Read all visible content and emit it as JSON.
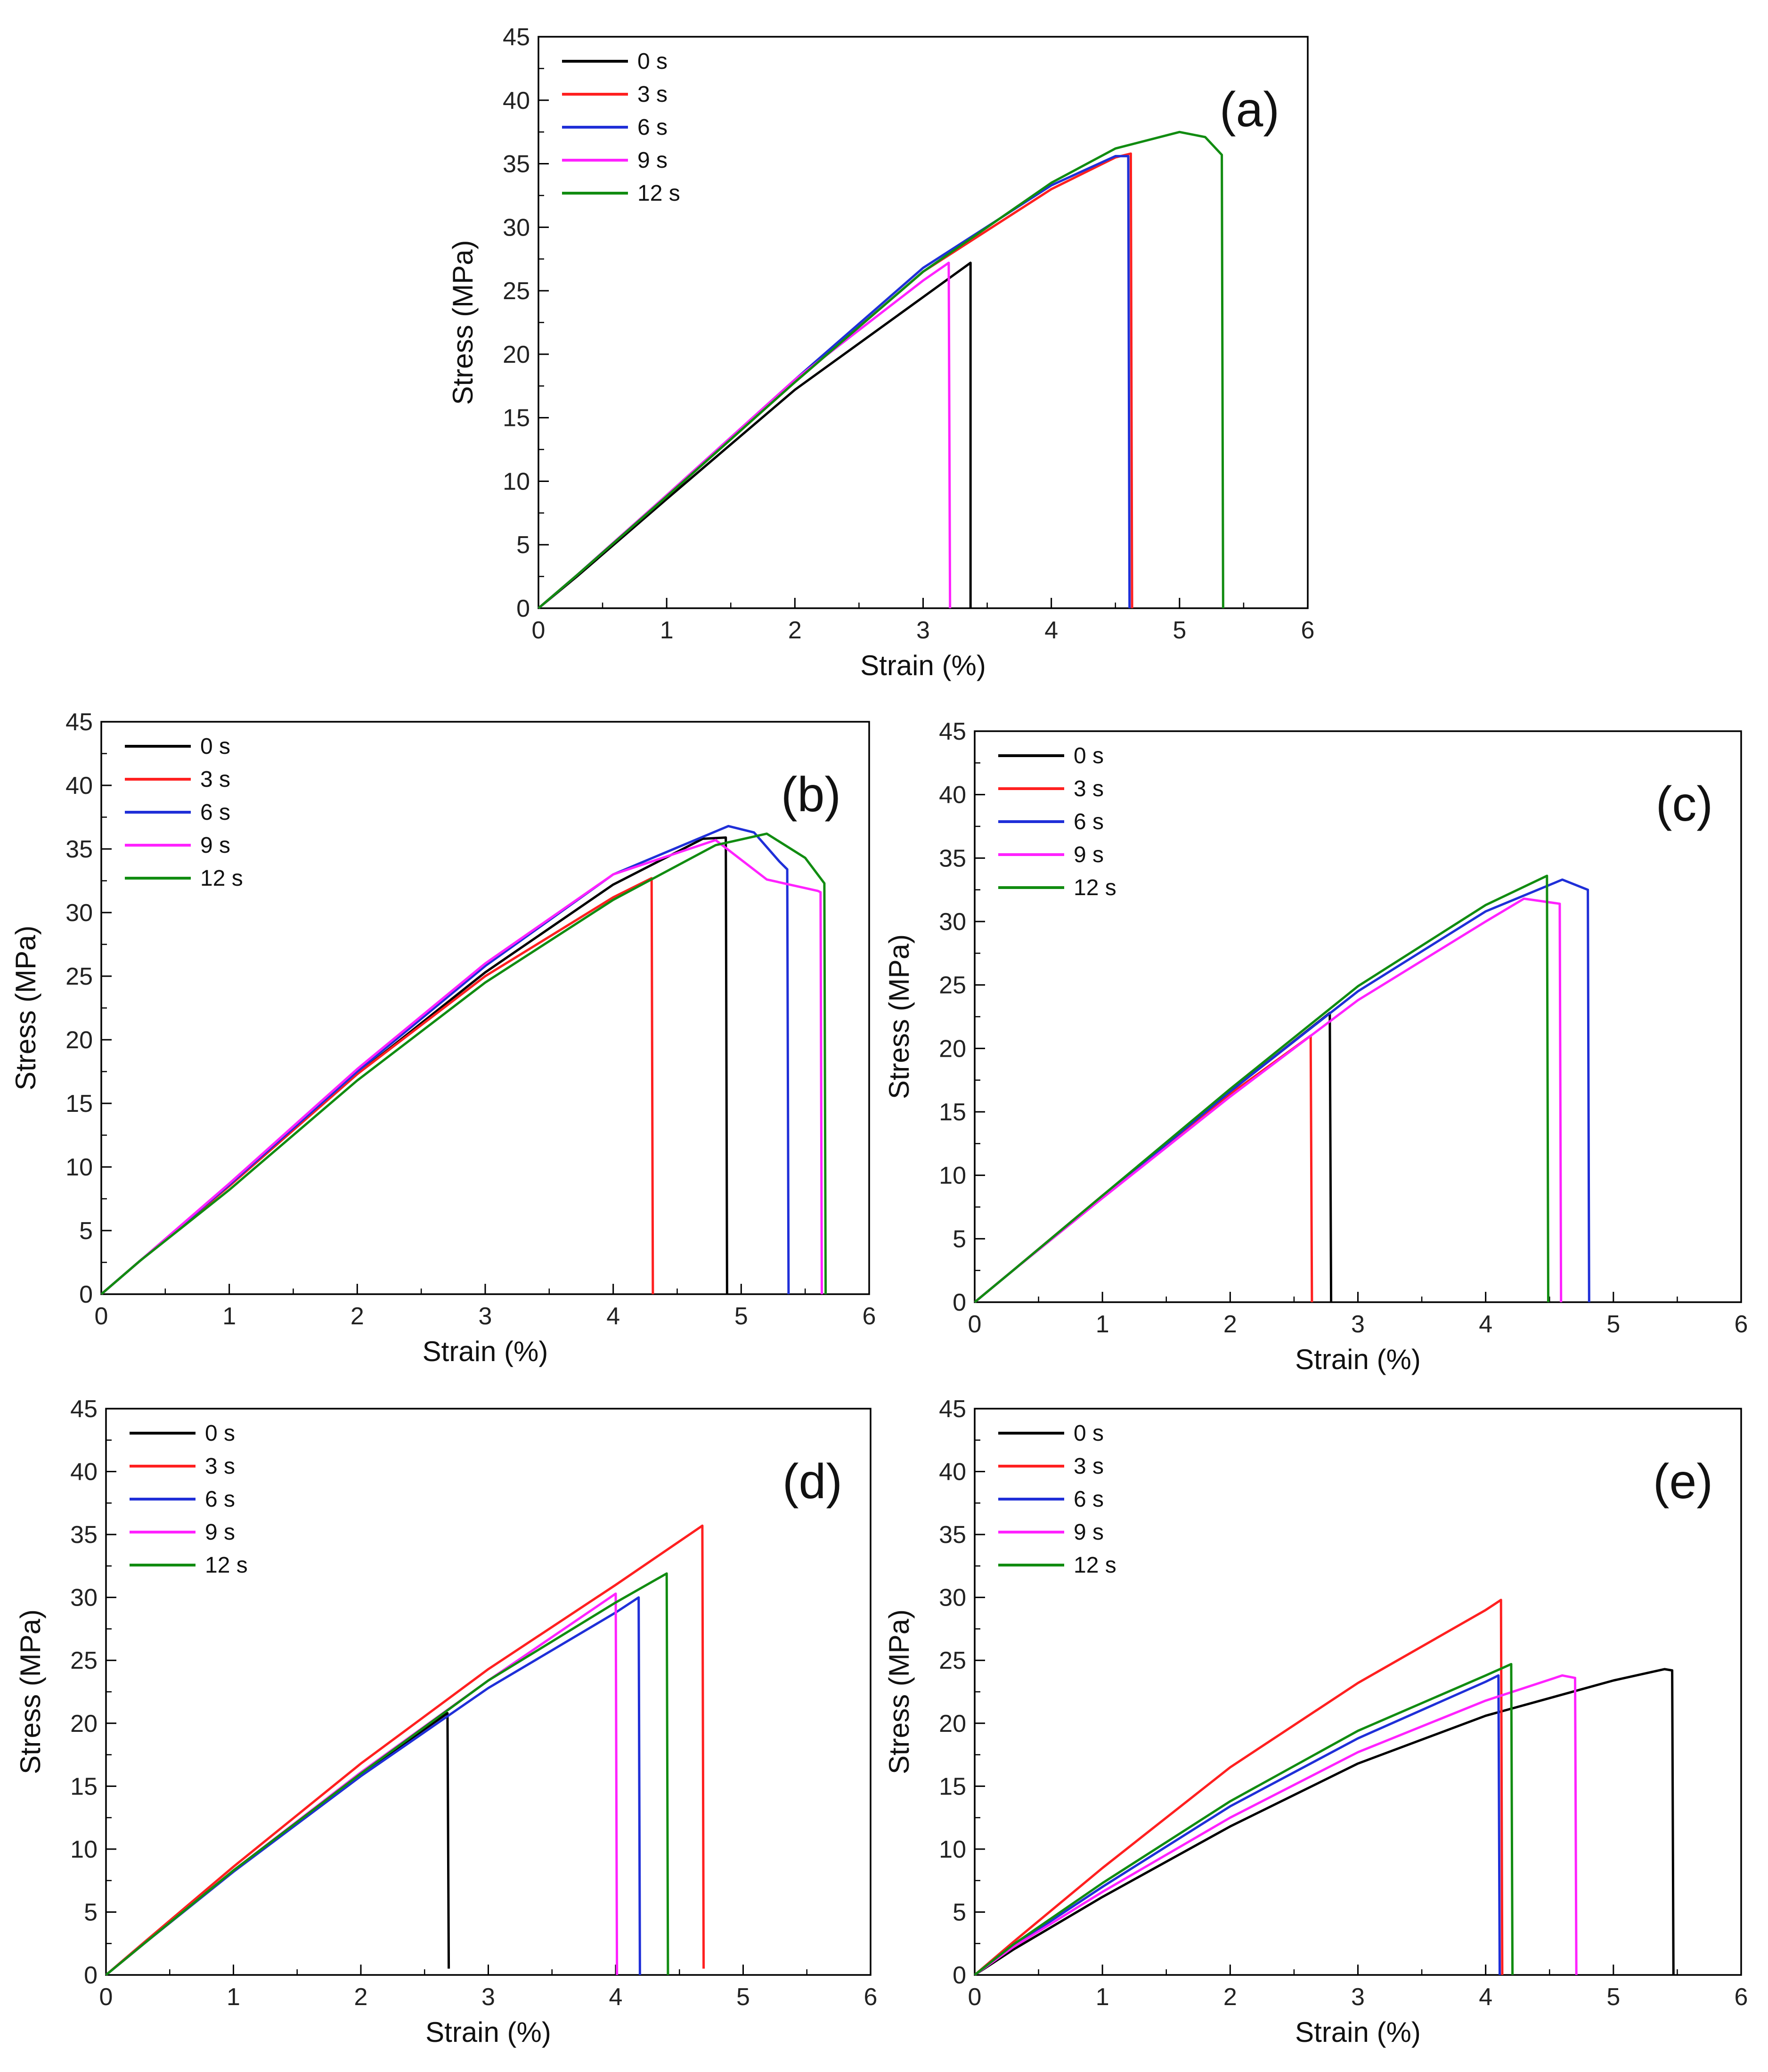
{
  "legend_labels": [
    "0 s",
    "3 s",
    "6 s",
    "9 s",
    "12 s"
  ],
  "series_colors": [
    "#000000",
    "#ff2020",
    "#1f2fd8",
    "#ff22ff",
    "#118c11"
  ],
  "chart_data": [
    {
      "id": "a",
      "type": "line",
      "panel_label": "(a)",
      "xlabel": "Strain (%)",
      "ylabel": "Stress (MPa)",
      "xlim": [
        0,
        6
      ],
      "ylim": [
        0,
        45
      ],
      "xticks": [
        "0",
        "1",
        "2",
        "3",
        "4",
        "5",
        "6"
      ],
      "yticks": [
        "0",
        "5",
        "10",
        "15",
        "20",
        "25",
        "30",
        "35",
        "40",
        "45"
      ],
      "series": [
        {
          "name": "0 s",
          "x": [
            0,
            0.3,
            1,
            2,
            3,
            3.37,
            3.37
          ],
          "y": [
            0,
            2.5,
            8.6,
            17.2,
            24.5,
            27.2,
            0
          ]
        },
        {
          "name": "3 s",
          "x": [
            0,
            0.3,
            1,
            2,
            3,
            4,
            4.5,
            4.62,
            4.63
          ],
          "y": [
            0,
            2.6,
            8.8,
            17.8,
            26.5,
            33.0,
            35.5,
            35.8,
            0
          ]
        },
        {
          "name": "6 s",
          "x": [
            0,
            0.3,
            1,
            2,
            3,
            4,
            4.5,
            4.6,
            4.61
          ],
          "y": [
            0,
            2.6,
            8.9,
            18.0,
            26.8,
            33.3,
            35.6,
            35.6,
            0
          ]
        },
        {
          "name": "9 s",
          "x": [
            0,
            0.3,
            1,
            2,
            3,
            3.2,
            3.21
          ],
          "y": [
            0,
            2.6,
            8.9,
            18.0,
            25.8,
            27.2,
            0
          ]
        },
        {
          "name": "12 s",
          "x": [
            0,
            0.3,
            1,
            2,
            3,
            4,
            4.5,
            5.0,
            5.2,
            5.33,
            5.34
          ],
          "y": [
            0,
            2.6,
            8.8,
            17.8,
            26.5,
            33.5,
            36.2,
            37.5,
            37.1,
            35.7,
            0
          ]
        }
      ]
    },
    {
      "id": "b",
      "type": "line",
      "panel_label": "(b)",
      "xlabel": "Strain (%)",
      "ylabel": "Stress (MPa)",
      "xlim": [
        0,
        6
      ],
      "ylim": [
        0,
        45
      ],
      "xticks": [
        "0",
        "1",
        "2",
        "3",
        "4",
        "5",
        "6"
      ],
      "yticks": [
        "0",
        "5",
        "10",
        "15",
        "20",
        "25",
        "30",
        "35",
        "40",
        "45"
      ],
      "series": [
        {
          "name": "0 s",
          "x": [
            0,
            0.3,
            1,
            2,
            3,
            4,
            4.7,
            4.88,
            4.89
          ],
          "y": [
            0,
            2.6,
            8.5,
            17.3,
            25.3,
            32.2,
            35.8,
            35.9,
            0
          ]
        },
        {
          "name": "3 s",
          "x": [
            0,
            0.3,
            1,
            2,
            3,
            4,
            4.3,
            4.31
          ],
          "y": [
            0,
            2.6,
            8.5,
            17.3,
            25.0,
            31.2,
            32.7,
            0
          ]
        },
        {
          "name": "6 s",
          "x": [
            0,
            0.3,
            1,
            2,
            3,
            4,
            4.9,
            5.1,
            5.3,
            5.36,
            5.37
          ],
          "y": [
            0,
            2.6,
            8.6,
            17.5,
            25.8,
            33.0,
            36.8,
            36.3,
            34.0,
            33.4,
            0
          ]
        },
        {
          "name": "9 s",
          "x": [
            0,
            0.3,
            1,
            2,
            3,
            4,
            4.8,
            5.2,
            5.6,
            5.62,
            5.63
          ],
          "y": [
            0,
            2.6,
            8.7,
            17.7,
            26.0,
            33.0,
            35.7,
            32.6,
            31.7,
            31.6,
            0
          ]
        },
        {
          "name": "12 s",
          "x": [
            0,
            0.3,
            1,
            2,
            3,
            4,
            4.8,
            5.2,
            5.5,
            5.65,
            5.66
          ],
          "y": [
            0,
            2.6,
            8.2,
            16.8,
            24.5,
            31.0,
            35.3,
            36.2,
            34.3,
            32.3,
            0
          ]
        }
      ]
    },
    {
      "id": "c",
      "type": "line",
      "panel_label": "(c)",
      "xlabel": "Strain (%)",
      "ylabel": "Stress (MPa)",
      "xlim": [
        0,
        6
      ],
      "ylim": [
        0,
        45
      ],
      "xticks": [
        "0",
        "1",
        "2",
        "3",
        "4",
        "5",
        "6"
      ],
      "yticks": [
        "0",
        "5",
        "10",
        "15",
        "20",
        "25",
        "30",
        "35",
        "40",
        "45"
      ],
      "series": [
        {
          "name": "0 s",
          "x": [
            0,
            0.3,
            1,
            2,
            2.78,
            2.79
          ],
          "y": [
            0,
            2.5,
            8.4,
            16.6,
            22.8,
            0
          ]
        },
        {
          "name": "3 s",
          "x": [
            0,
            0.3,
            1,
            2,
            2.63,
            2.64
          ],
          "y": [
            0,
            2.5,
            8.4,
            16.4,
            21.0,
            0
          ]
        },
        {
          "name": "6 s",
          "x": [
            0,
            0.3,
            1,
            2,
            3,
            4,
            4.6,
            4.8,
            4.81
          ],
          "y": [
            0,
            2.5,
            8.3,
            16.6,
            24.5,
            30.8,
            33.3,
            32.5,
            0
          ]
        },
        {
          "name": "9 s",
          "x": [
            0,
            0.3,
            1,
            2,
            3,
            4,
            4.3,
            4.58,
            4.59
          ],
          "y": [
            0,
            2.5,
            8.2,
            16.2,
            23.8,
            30.0,
            31.8,
            31.4,
            0
          ]
        },
        {
          "name": "12 s",
          "x": [
            0,
            0.3,
            1,
            2,
            3,
            4,
            4.48,
            4.49
          ],
          "y": [
            0,
            2.5,
            8.4,
            16.8,
            24.9,
            31.3,
            33.6,
            0
          ]
        }
      ]
    },
    {
      "id": "d",
      "type": "line",
      "panel_label": "(d)",
      "xlabel": "Strain (%)",
      "ylabel": "Stress (MPa)",
      "xlim": [
        0,
        6
      ],
      "ylim": [
        0,
        45
      ],
      "xticks": [
        "0",
        "1",
        "2",
        "3",
        "4",
        "5",
        "6"
      ],
      "yticks": [
        "0",
        "5",
        "10",
        "15",
        "20",
        "25",
        "30",
        "35",
        "40",
        "45"
      ],
      "series": [
        {
          "name": "0 s",
          "x": [
            0,
            0.3,
            1,
            2,
            2.68,
            2.69
          ],
          "y": [
            0,
            2.5,
            8.3,
            16.0,
            20.8,
            0.5
          ]
        },
        {
          "name": "3 s",
          "x": [
            0,
            0.3,
            1,
            2,
            3,
            4,
            4.68,
            4.69
          ],
          "y": [
            0,
            2.6,
            8.6,
            16.8,
            24.3,
            31.0,
            35.7,
            0.5
          ]
        },
        {
          "name": "6 s",
          "x": [
            0,
            0.3,
            1,
            2,
            3,
            4,
            4.18,
            4.19
          ],
          "y": [
            0,
            2.5,
            8.2,
            15.8,
            22.8,
            28.8,
            30.0,
            0
          ]
        },
        {
          "name": "9 s",
          "x": [
            0,
            0.3,
            1,
            2,
            3,
            4,
            4.01
          ],
          "y": [
            0,
            2.5,
            8.3,
            16.1,
            23.4,
            30.3,
            0
          ]
        },
        {
          "name": "12 s",
          "x": [
            0,
            0.3,
            1,
            2,
            3,
            4,
            4.4,
            4.41
          ],
          "y": [
            0,
            2.5,
            8.3,
            16.0,
            23.4,
            29.6,
            31.9,
            0
          ]
        }
      ]
    },
    {
      "id": "e",
      "type": "line",
      "panel_label": "(e)",
      "xlabel": "Strain (%)",
      "ylabel": "Stress (MPa)",
      "xlim": [
        0,
        6
      ],
      "ylim": [
        0,
        45
      ],
      "xticks": [
        "0",
        "1",
        "2",
        "3",
        "4",
        "5",
        "6"
      ],
      "yticks": [
        "0",
        "5",
        "10",
        "15",
        "20",
        "25",
        "30",
        "35",
        "40",
        "45"
      ],
      "series": [
        {
          "name": "0 s",
          "x": [
            0,
            0.3,
            1,
            2,
            3,
            4,
            5,
            5.4,
            5.46,
            5.47
          ],
          "y": [
            0,
            2.0,
            6.2,
            11.8,
            16.8,
            20.6,
            23.4,
            24.3,
            24.2,
            0
          ]
        },
        {
          "name": "3 s",
          "x": [
            0,
            0.3,
            1,
            2,
            3,
            4,
            4.12,
            4.13
          ],
          "y": [
            0,
            2.6,
            8.5,
            16.5,
            23.2,
            29.0,
            29.8,
            0
          ]
        },
        {
          "name": "6 s",
          "x": [
            0,
            0.3,
            1,
            2,
            3,
            4,
            4.1,
            4.11
          ],
          "y": [
            0,
            2.3,
            7.0,
            13.4,
            18.8,
            23.3,
            23.8,
            0
          ]
        },
        {
          "name": "9 s",
          "x": [
            0,
            0.3,
            1,
            2,
            3,
            4,
            4.6,
            4.7,
            4.71
          ],
          "y": [
            0,
            2.2,
            6.6,
            12.5,
            17.7,
            21.8,
            23.8,
            23.6,
            0
          ]
        },
        {
          "name": "12 s",
          "x": [
            0,
            0.3,
            1,
            2,
            3,
            4,
            4.2,
            4.21
          ],
          "y": [
            0,
            2.4,
            7.3,
            13.8,
            19.4,
            23.8,
            24.7,
            0
          ]
        }
      ]
    }
  ]
}
